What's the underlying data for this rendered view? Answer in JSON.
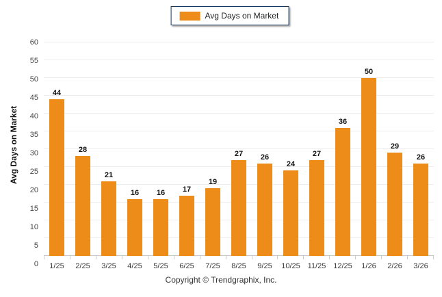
{
  "legend": {
    "label": "Avg Days on Market",
    "swatch_color": "#EE8C19"
  },
  "chart_data": {
    "type": "bar",
    "title": "",
    "xlabel": "",
    "ylabel": "Avg Days on Market",
    "categories": [
      "1/25",
      "2/25",
      "3/25",
      "4/25",
      "5/25",
      "6/25",
      "7/25",
      "8/25",
      "9/25",
      "10/25",
      "11/25",
      "12/25",
      "1/26",
      "2/26",
      "3/26"
    ],
    "values": [
      44,
      28,
      21,
      16,
      16,
      17,
      19,
      27,
      26,
      24,
      27,
      36,
      50,
      29,
      26
    ],
    "ylim": [
      0,
      60
    ],
    "ytick_step": 5,
    "grid": true,
    "legend_position": "top-center",
    "bar_color": "#EE8C19",
    "value_labels": true
  },
  "footer": {
    "copyright": "Copyright © Trendgraphix, Inc."
  }
}
